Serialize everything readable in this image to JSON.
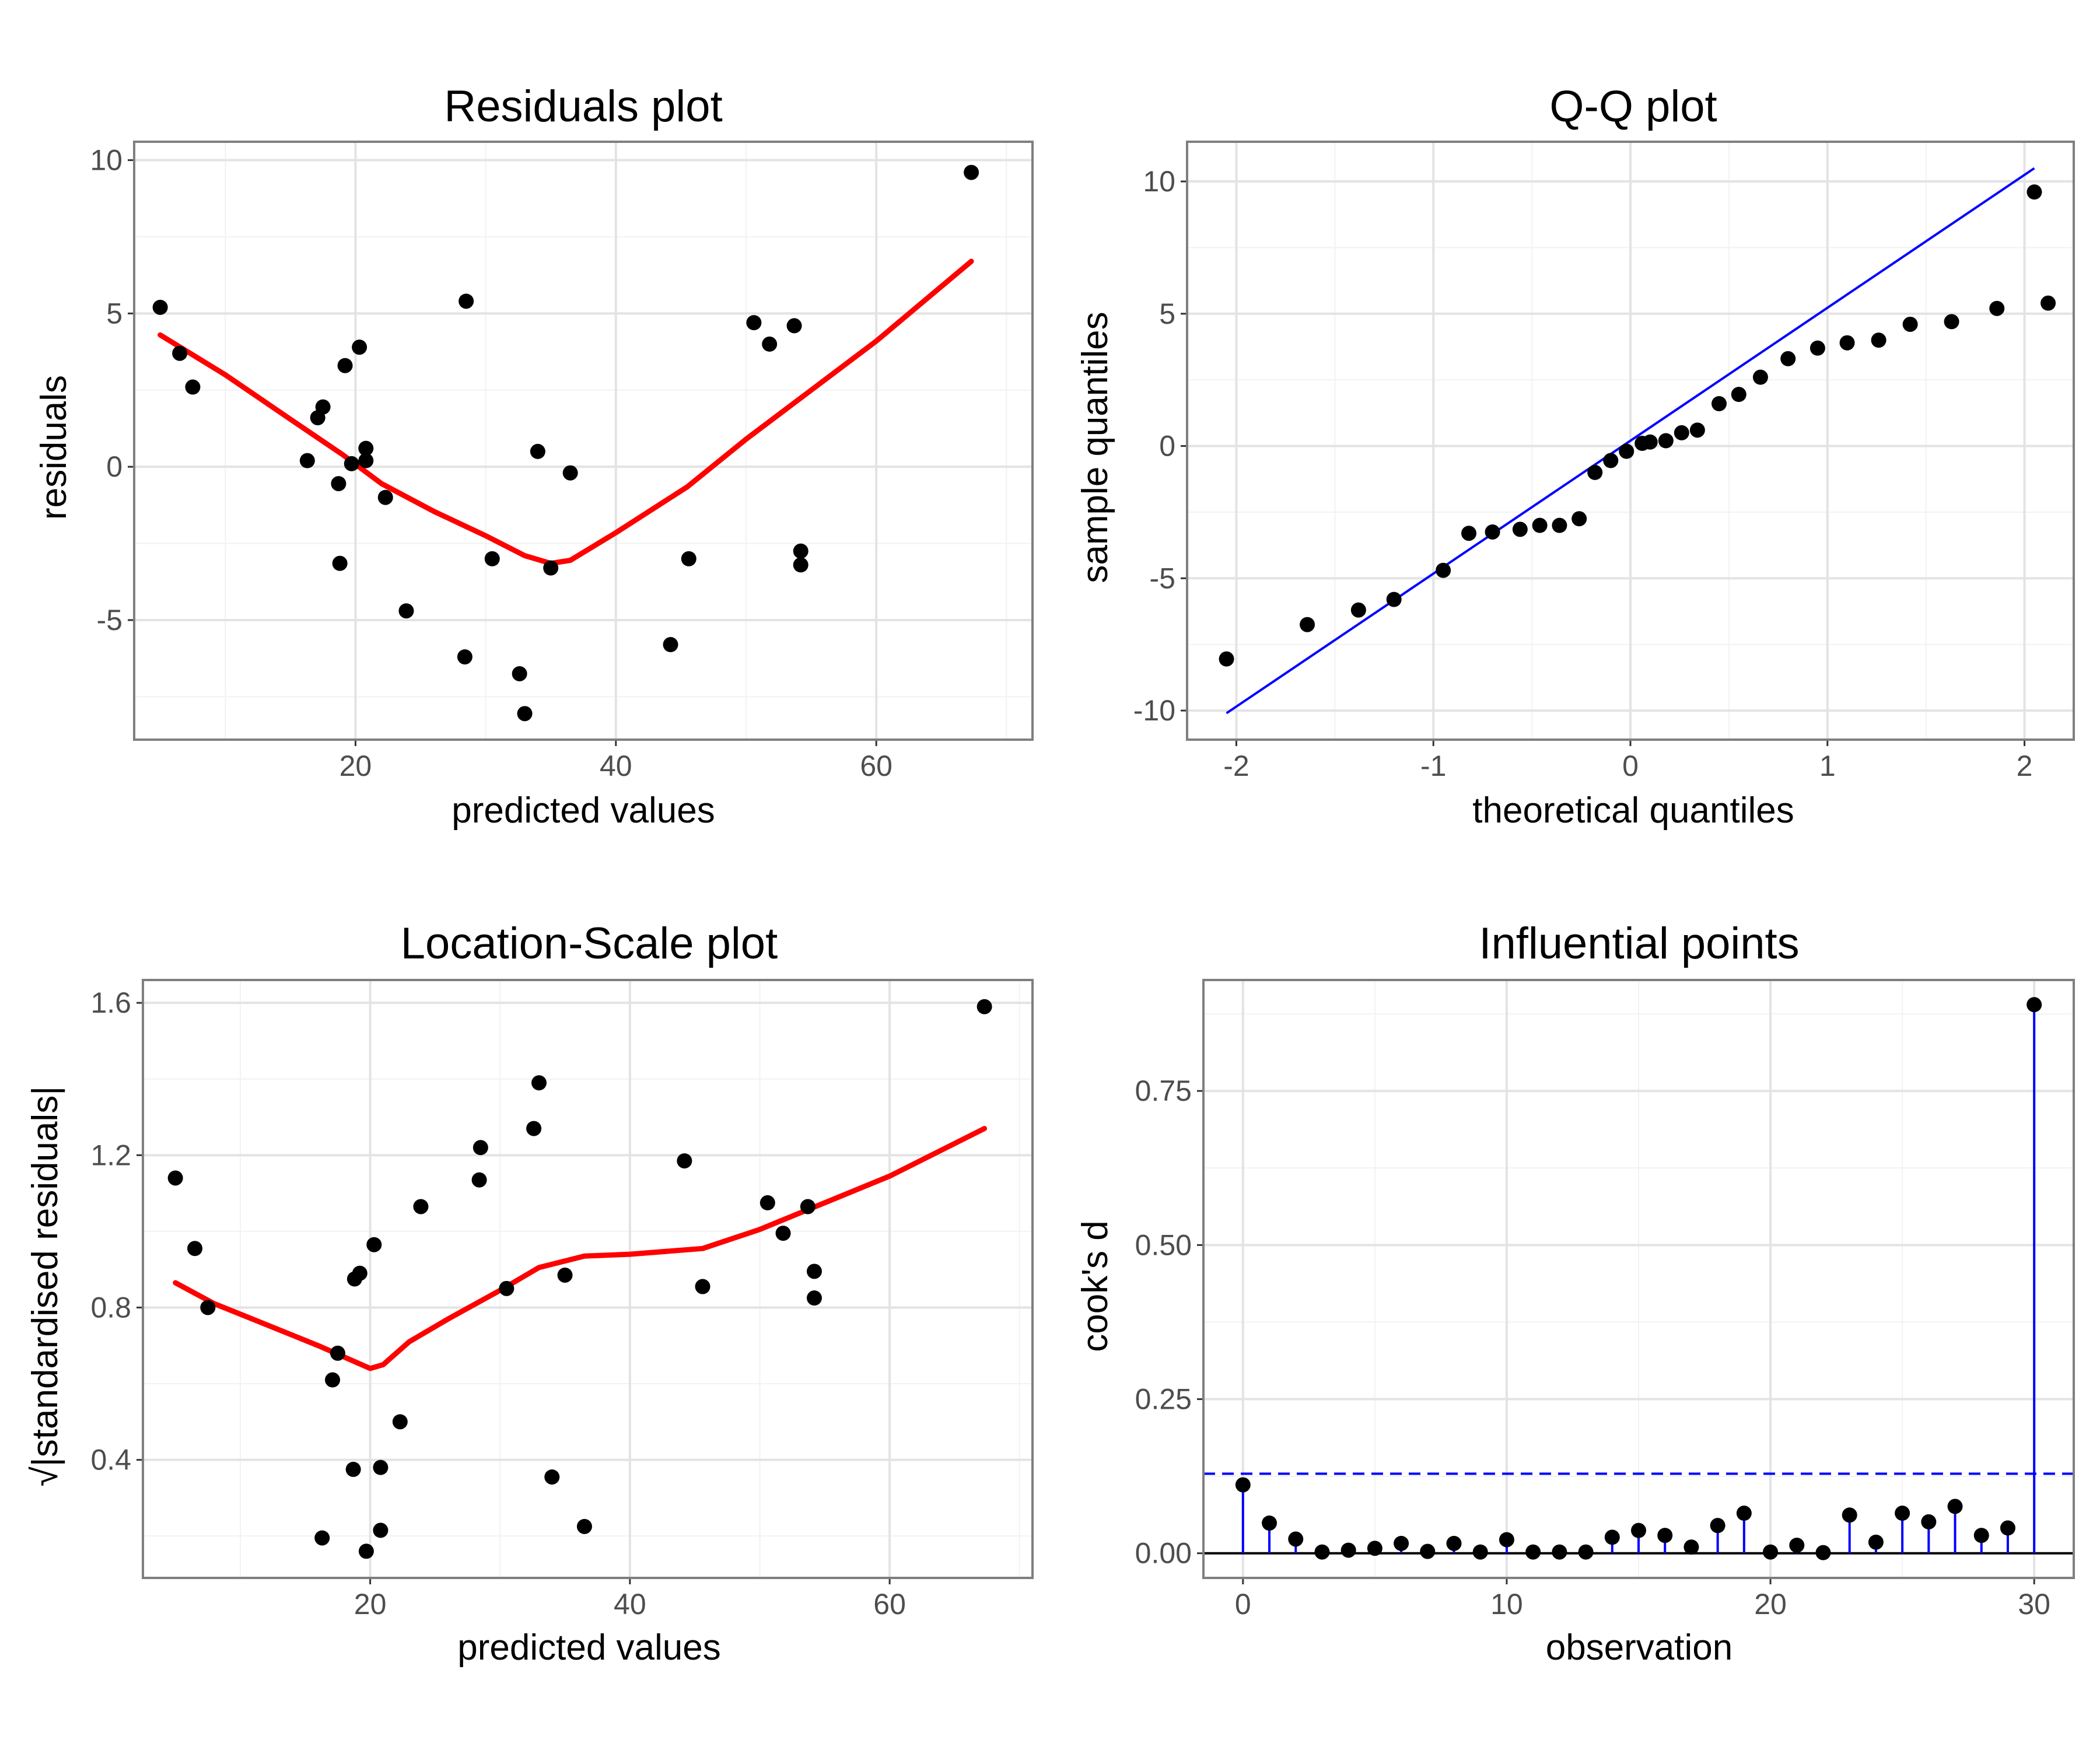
{
  "colors": {
    "points": "#000000",
    "smooth_line": "#ff0000",
    "reference_line": "#0000ff",
    "stems": "#0000ff",
    "threshold": "#0000ff",
    "zero_line": "#000000",
    "panel_border": "#7f7f7f",
    "grid_major": "#e3e3e3",
    "grid_minor": "#f2f2f2"
  },
  "chart_data": [
    {
      "type": "scatter",
      "title": "Residuals plot",
      "xlabel": "predicted values",
      "ylabel": "residuals",
      "xlim": [
        3,
        72
      ],
      "ylim": [
        -8.9,
        10.6
      ],
      "xticks": [
        20,
        40,
        60
      ],
      "yticks": [
        -5,
        0,
        5,
        10
      ],
      "xtick_labels": [
        "20",
        "40",
        "60"
      ],
      "ytick_labels": [
        "-5",
        "0",
        "5",
        "10"
      ],
      "grid": true,
      "points": [
        [
          5.0,
          5.2
        ],
        [
          6.5,
          3.7
        ],
        [
          7.5,
          2.6
        ],
        [
          16.3,
          0.2
        ],
        [
          17.1,
          1.6
        ],
        [
          17.5,
          1.95
        ],
        [
          18.7,
          -0.55
        ],
        [
          18.8,
          -3.15
        ],
        [
          19.2,
          3.3
        ],
        [
          19.7,
          0.1
        ],
        [
          20.3,
          3.9
        ],
        [
          20.8,
          0.6
        ],
        [
          20.8,
          0.2
        ],
        [
          22.3,
          -1.0
        ],
        [
          23.9,
          -4.7
        ],
        [
          28.4,
          -6.2
        ],
        [
          28.5,
          5.4
        ],
        [
          30.5,
          -3.0
        ],
        [
          32.6,
          -6.75
        ],
        [
          33.0,
          -8.05
        ],
        [
          34.0,
          0.5
        ],
        [
          35.0,
          -3.3
        ],
        [
          36.5,
          -0.2
        ],
        [
          44.2,
          -5.8
        ],
        [
          45.6,
          -3.0
        ],
        [
          50.6,
          4.7
        ],
        [
          51.8,
          4.0
        ],
        [
          53.7,
          4.6
        ],
        [
          54.2,
          -2.75
        ],
        [
          54.2,
          -3.2
        ],
        [
          67.3,
          9.6
        ]
      ],
      "smooth": [
        [
          5.0,
          4.3
        ],
        [
          10.0,
          3.0
        ],
        [
          15.0,
          1.55
        ],
        [
          19.0,
          0.4
        ],
        [
          22.0,
          -0.55
        ],
        [
          26.0,
          -1.45
        ],
        [
          30.0,
          -2.25
        ],
        [
          33.0,
          -2.9
        ],
        [
          35.0,
          -3.15
        ],
        [
          36.5,
          -3.05
        ],
        [
          40.0,
          -2.15
        ],
        [
          45.5,
          -0.65
        ],
        [
          50.0,
          0.9
        ],
        [
          55.0,
          2.5
        ],
        [
          60.0,
          4.1
        ],
        [
          67.3,
          6.7
        ]
      ]
    },
    {
      "type": "scatter",
      "title": "Q-Q plot",
      "xlabel": "theoretical quantiles",
      "ylabel": "sample quantiles",
      "xlim": [
        -2.25,
        2.25
      ],
      "ylim": [
        -11.1,
        11.5
      ],
      "xticks": [
        -2,
        -1,
        0,
        1,
        2
      ],
      "yticks": [
        -10,
        -5,
        0,
        5,
        10
      ],
      "xtick_labels": [
        "-2",
        "-1",
        "0",
        "1",
        "2"
      ],
      "ytick_labels": [
        "-10",
        "-5",
        "0",
        "5",
        "10"
      ],
      "grid": true,
      "points": [
        [
          -2.05,
          -8.05
        ],
        [
          -1.64,
          -6.75
        ],
        [
          -1.38,
          -6.2
        ],
        [
          -1.2,
          -5.8
        ],
        [
          -0.95,
          -4.7
        ],
        [
          -0.82,
          -3.3
        ],
        [
          -0.7,
          -3.25
        ],
        [
          -0.56,
          -3.15
        ],
        [
          -0.46,
          -3.0
        ],
        [
          -0.36,
          -3.0
        ],
        [
          -0.26,
          -2.75
        ],
        [
          -0.18,
          -1.0
        ],
        [
          -0.1,
          -0.55
        ],
        [
          -0.02,
          -0.2
        ],
        [
          0.06,
          0.1
        ],
        [
          0.1,
          0.15
        ],
        [
          0.18,
          0.2
        ],
        [
          0.26,
          0.5
        ],
        [
          0.34,
          0.6
        ],
        [
          0.45,
          1.6
        ],
        [
          0.55,
          1.95
        ],
        [
          0.66,
          2.6
        ],
        [
          0.8,
          3.3
        ],
        [
          0.95,
          3.7
        ],
        [
          1.1,
          3.9
        ],
        [
          1.26,
          4.0
        ],
        [
          1.42,
          4.6
        ],
        [
          1.63,
          4.7
        ],
        [
          1.86,
          5.2
        ],
        [
          2.12,
          5.4
        ],
        [
          2.05,
          9.6
        ]
      ],
      "reference_line": [
        [
          -2.05,
          -10.1
        ],
        [
          2.05,
          10.5
        ]
      ]
    },
    {
      "type": "scatter",
      "title": "Location-Scale plot",
      "xlabel": "predicted values",
      "ylabel": "√|standardised residuals|",
      "xlim": [
        2.5,
        71
      ],
      "ylim": [
        0.09,
        1.66
      ],
      "xticks": [
        20,
        40,
        60
      ],
      "yticks": [
        0.4,
        0.8,
        1.2,
        1.6
      ],
      "xtick_labels": [
        "20",
        "40",
        "60"
      ],
      "ytick_labels": [
        "0.4",
        "0.8",
        "1.2",
        "1.6"
      ],
      "grid": true,
      "points": [
        [
          5.0,
          1.14
        ],
        [
          6.5,
          0.955
        ],
        [
          7.5,
          0.8
        ],
        [
          16.3,
          0.195
        ],
        [
          17.1,
          0.61
        ],
        [
          17.5,
          0.68
        ],
        [
          18.7,
          0.375
        ],
        [
          18.8,
          0.875
        ],
        [
          19.2,
          0.89
        ],
        [
          19.7,
          0.16
        ],
        [
          20.3,
          0.965
        ],
        [
          20.8,
          0.215
        ],
        [
          20.8,
          0.38
        ],
        [
          22.3,
          0.5
        ],
        [
          23.9,
          1.065
        ],
        [
          28.4,
          1.135
        ],
        [
          28.5,
          1.22
        ],
        [
          30.5,
          0.85
        ],
        [
          32.6,
          1.27
        ],
        [
          33.0,
          1.39
        ],
        [
          34.0,
          0.355
        ],
        [
          35.0,
          0.885
        ],
        [
          36.5,
          0.225
        ],
        [
          44.2,
          1.185
        ],
        [
          45.6,
          0.855
        ],
        [
          50.6,
          1.075
        ],
        [
          51.8,
          0.995
        ],
        [
          53.7,
          1.065
        ],
        [
          54.2,
          0.895
        ],
        [
          54.2,
          0.825
        ],
        [
          67.3,
          1.59
        ]
      ],
      "smooth": [
        [
          5.0,
          0.865
        ],
        [
          8.0,
          0.81
        ],
        [
          12.0,
          0.755
        ],
        [
          16.0,
          0.7
        ],
        [
          19.0,
          0.655
        ],
        [
          20.0,
          0.64
        ],
        [
          21.0,
          0.65
        ],
        [
          23.0,
          0.71
        ],
        [
          26.0,
          0.77
        ],
        [
          30.0,
          0.845
        ],
        [
          33.0,
          0.905
        ],
        [
          36.5,
          0.935
        ],
        [
          40.0,
          0.94
        ],
        [
          45.6,
          0.955
        ],
        [
          50.0,
          1.005
        ],
        [
          55.0,
          1.075
        ],
        [
          60.0,
          1.145
        ],
        [
          67.3,
          1.27
        ]
      ]
    },
    {
      "type": "scatter",
      "title": "Influential points",
      "xlabel": "observation",
      "ylabel": "cook's d",
      "xlim": [
        -1.5,
        31.5
      ],
      "ylim": [
        -0.04,
        0.93
      ],
      "xticks": [
        0,
        10,
        20,
        30
      ],
      "yticks": [
        0,
        0.25,
        0.5,
        0.75
      ],
      "xtick_labels": [
        "0",
        "10",
        "20",
        "30"
      ],
      "ytick_labels": [
        "0.00",
        "0.25",
        "0.50",
        "0.75"
      ],
      "grid": true,
      "threshold": 0.129,
      "x": [
        0,
        1,
        2,
        3,
        4,
        5,
        6,
        7,
        8,
        9,
        10,
        11,
        12,
        13,
        14,
        15,
        16,
        17,
        18,
        19,
        20,
        21,
        22,
        23,
        24,
        25,
        26,
        27,
        28,
        29,
        30
      ],
      "values": [
        0.111,
        0.049,
        0.023,
        0.002,
        0.005,
        0.008,
        0.016,
        0.003,
        0.016,
        0.002,
        0.022,
        0.002,
        0.002,
        0.002,
        0.026,
        0.037,
        0.029,
        0.01,
        0.045,
        0.065,
        0.002,
        0.013,
        0.001,
        0.062,
        0.018,
        0.065,
        0.051,
        0.076,
        0.029,
        0.041,
        0.89
      ]
    }
  ]
}
